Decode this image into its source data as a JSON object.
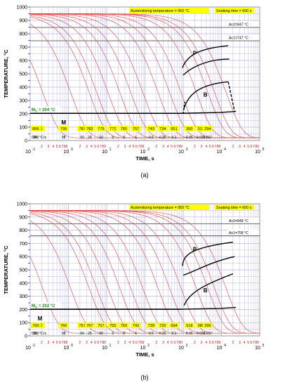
{
  "colors": {
    "grid": "#b9b9e6",
    "cooling_curve": "#e04545",
    "transformation": "#000000",
    "highlight": "#ffff00",
    "ms_text": "#1a8a1a",
    "cr_text": "#d01010"
  },
  "chart_data": [
    {
      "type": "line",
      "title": "",
      "caption": "(a)",
      "xlabel": "TIME, s",
      "ylabel": "TEMPERATURE, °C",
      "xscale": "log",
      "xlim": [
        0.1,
        100000
      ],
      "ylim": [
        0,
        1000
      ],
      "x_decade_labels": [
        "10",
        "10",
        "10",
        "10",
        "10",
        "10",
        "10"
      ],
      "x_decade_exponents": [
        "-1",
        "0",
        "1",
        "2",
        "3",
        "4",
        "5"
      ],
      "minor_tick_labels": [
        "2",
        "3",
        "4",
        "5",
        "6",
        "7",
        "8",
        "9"
      ],
      "y_ticks": [
        "0",
        "50",
        "100",
        "150",
        "200",
        "250",
        "300",
        "350",
        "400",
        "450",
        "500",
        "550",
        "600",
        "650",
        "700",
        "750",
        "800",
        "850",
        "900",
        "950",
        "1000"
      ],
      "austenitizing_label": "Austenitizing temperature = 950 °C",
      "soaking_label": "Soaking time = 600 s",
      "ac3_label": "Ac3=847 °C",
      "ac3": 847,
      "ac1_label": "Ac1=747 °C",
      "ac1": 747,
      "ms_label": "M",
      "ms_sub": "S",
      "ms_value_label": "= 204 °C",
      "ms": 204,
      "region_labels": {
        "martensite": "M",
        "pearlite": "P",
        "bainite": "B"
      },
      "hv_header": "HV10",
      "hardness": [
        "806",
        "795",
        "787",
        "782",
        "775",
        "772",
        "760",
        "757",
        "743",
        "734",
        "651",
        "350",
        "313",
        "294"
      ],
      "cr_header": "CR, °C/s",
      "cooling_rates": [
        "586",
        "98",
        "50",
        "25",
        "10",
        "5",
        "2",
        "1",
        "0.5",
        "0.25",
        "0.1",
        "0.05",
        "0.033",
        "0.017"
      ],
      "cooling_curve_x50": [
        0.14,
        0.75,
        2.3,
        3.6,
        7.1,
        14.5,
        28,
        58,
        145,
        290,
        580,
        1450,
        2900,
        4350,
        8700
      ]
    },
    {
      "type": "line",
      "title": "",
      "caption": "(b)",
      "xlabel": "TIME, s",
      "ylabel": "TEMPERATURE, °C",
      "xscale": "log",
      "xlim": [
        0.1,
        100000
      ],
      "ylim": [
        0,
        1000
      ],
      "x_decade_labels": [
        "10",
        "10",
        "10",
        "10",
        "10",
        "10",
        "10"
      ],
      "x_decade_exponents": [
        "-1",
        "0",
        "1",
        "2",
        "3",
        "4",
        "5"
      ],
      "minor_tick_labels": [
        "2",
        "3",
        "4",
        "5",
        "6",
        "7",
        "8",
        "9"
      ],
      "y_ticks": [
        "0",
        "50",
        "100",
        "150",
        "200",
        "250",
        "300",
        "350",
        "400",
        "450",
        "500",
        "550",
        "600",
        "650",
        "700",
        "750",
        "800",
        "850",
        "900",
        "950",
        "1000"
      ],
      "austenitizing_label": "Austenitizing temperature = 950 °C",
      "soaking_label": "Soaking time = 600 s",
      "ac3_label": "Ac3=848 °C",
      "ac3": 848,
      "ac1_label": "Ac1=758 °C",
      "ac1": 758,
      "ms_label": "M",
      "ms_sub": "S",
      "ms_value_label": "= 202 °C",
      "ms": 202,
      "region_labels": {
        "martensite": "M",
        "pearlite": "P",
        "bainite": "B"
      },
      "hv_header": "HV10",
      "hardness": [
        "760",
        "760",
        "767",
        "767",
        "757",
        "755",
        "750",
        "743",
        "739",
        "720",
        "694",
        "518",
        "386",
        "296"
      ],
      "cr_header": "CR, °C/s",
      "cooling_rates": [
        "589",
        "98",
        "50",
        "25",
        "10",
        "5",
        "2",
        "1",
        "0.5",
        "0.25",
        "0.1",
        "0.05",
        "0.033",
        "0.017"
      ],
      "cooling_curve_x50": [
        0.14,
        0.75,
        2.3,
        3.6,
        7.1,
        14.5,
        28,
        58,
        145,
        290,
        580,
        1450,
        2900,
        4350,
        8700
      ]
    }
  ]
}
